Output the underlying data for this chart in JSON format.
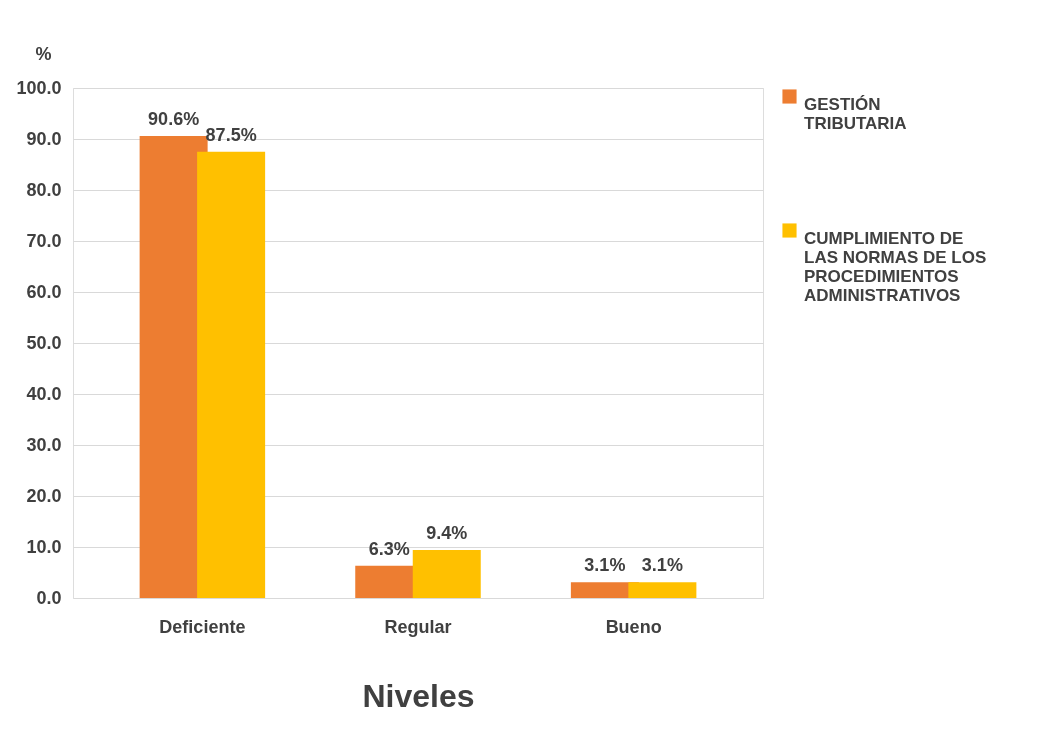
{
  "chart_data": {
    "type": "bar",
    "xlabel": "Niveles",
    "ylabel": "%",
    "categories": [
      "Deficiente",
      "Regular",
      "Bueno"
    ],
    "series": [
      {
        "name": "GESTIÓN TRIBUTARIA",
        "color": "#ed7d31",
        "values": [
          90.6,
          6.3,
          3.1
        ],
        "value_labels": [
          "90.6%",
          "6.3%",
          "3.1%"
        ]
      },
      {
        "name": "CUMPLIMIENTO DE LAS NORMAS DE LOS PROCEDIMIENTOS ADMINISTRATIVOS",
        "color": "#ffc000",
        "values": [
          87.5,
          9.4,
          3.1
        ],
        "value_labels": [
          "87.5%",
          "9.4%",
          "3.1%"
        ]
      }
    ],
    "ylim": [
      0,
      100
    ],
    "yticks": [
      {
        "value": 0,
        "label": "0.0"
      },
      {
        "value": 10,
        "label": "10.0"
      },
      {
        "value": 20,
        "label": "20.0"
      },
      {
        "value": 30,
        "label": "30.0"
      },
      {
        "value": 40,
        "label": "40.0"
      },
      {
        "value": 50,
        "label": "50.0"
      },
      {
        "value": 60,
        "label": "60.0"
      },
      {
        "value": 70,
        "label": "70.0"
      },
      {
        "value": 80,
        "label": "80.0"
      },
      {
        "value": 90,
        "label": "90.0"
      },
      {
        "value": 100,
        "label": "100.0"
      }
    ],
    "grid": "y",
    "legend": "top right"
  }
}
